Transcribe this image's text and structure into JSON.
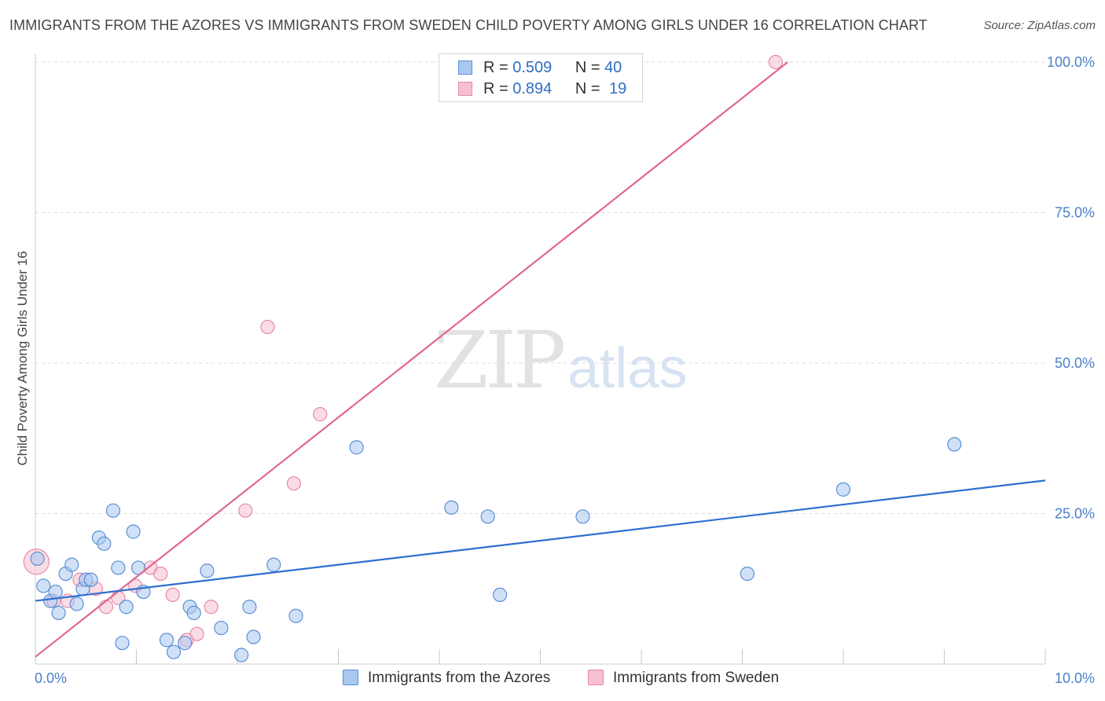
{
  "header": {
    "title": "IMMIGRANTS FROM THE AZORES VS IMMIGRANTS FROM SWEDEN CHILD POVERTY AMONG GIRLS UNDER 16 CORRELATION CHART",
    "source": "Source: ZipAtlas.com"
  },
  "watermark": {
    "zip": "ZIP",
    "atlas": "atlas"
  },
  "legend": {
    "r_label": "R =",
    "n_label": "N =",
    "rows": [
      {
        "r": "0.509",
        "n": "40"
      },
      {
        "r": "0.894",
        "n": "19"
      }
    ]
  },
  "colors": {
    "azores_fill": "#a9c8f0",
    "azores_stroke": "#5a8fd6",
    "azores_line": "#2e6fcf",
    "sweden_fill": "#f7bfd0",
    "sweden_stroke": "#e58aa8",
    "sweden_line": "#e06890",
    "grid": "#dcdcdc",
    "tick_text": "#4a7fc9"
  },
  "chart_data": {
    "type": "scatter",
    "title": "IMMIGRANTS FROM THE AZORES VS IMMIGRANTS FROM SWEDEN CHILD POVERTY AMONG GIRLS UNDER 16 CORRELATION CHART",
    "xlabel": "",
    "ylabel": "Child Poverty Among Girls Under 16",
    "xlim": [
      0,
      10
    ],
    "ylim": [
      0,
      100
    ],
    "x_tick_labels": [
      "0.0%",
      "10.0%"
    ],
    "y_ticks": [
      25,
      50,
      75,
      100
    ],
    "y_tick_labels": [
      "25.0%",
      "50.0%",
      "75.0%",
      "100.0%"
    ],
    "grid": true,
    "legend_position": "top-center",
    "series": [
      {
        "name": "Immigrants from the Azores",
        "r": 0.509,
        "n": 40,
        "trend": {
          "x": [
            0,
            10
          ],
          "y": [
            10.5,
            30.5
          ]
        },
        "points": [
          [
            0.02,
            17.5
          ],
          [
            0.08,
            13.0
          ],
          [
            0.15,
            10.5
          ],
          [
            0.2,
            12.0
          ],
          [
            0.23,
            8.5
          ],
          [
            0.3,
            15.0
          ],
          [
            0.36,
            16.5
          ],
          [
            0.41,
            10.0
          ],
          [
            0.47,
            12.5
          ],
          [
            0.5,
            14.0
          ],
          [
            0.55,
            14.0
          ],
          [
            0.63,
            21.0
          ],
          [
            0.68,
            20.0
          ],
          [
            0.77,
            25.5
          ],
          [
            0.82,
            16.0
          ],
          [
            0.86,
            3.5
          ],
          [
            0.9,
            9.5
          ],
          [
            0.97,
            22.0
          ],
          [
            1.02,
            16.0
          ],
          [
            1.07,
            12.0
          ],
          [
            1.3,
            4.0
          ],
          [
            1.37,
            2.0
          ],
          [
            1.48,
            3.5
          ],
          [
            1.53,
            9.5
          ],
          [
            1.57,
            8.5
          ],
          [
            1.7,
            15.5
          ],
          [
            1.84,
            6.0
          ],
          [
            2.04,
            1.5
          ],
          [
            2.12,
            9.5
          ],
          [
            2.16,
            4.5
          ],
          [
            2.36,
            16.5
          ],
          [
            2.58,
            8.0
          ],
          [
            3.18,
            36.0
          ],
          [
            4.12,
            26.0
          ],
          [
            4.48,
            24.5
          ],
          [
            4.6,
            11.5
          ],
          [
            5.42,
            24.5
          ],
          [
            7.05,
            15.0
          ],
          [
            8.0,
            29.0
          ],
          [
            9.1,
            36.5
          ]
        ]
      },
      {
        "name": "Immigrants from Sweden",
        "r": 0.894,
        "n": 19,
        "trend": {
          "x": [
            0,
            7.45
          ],
          "y": [
            1.2,
            100
          ]
        },
        "points": [
          [
            0.01,
            17.0
          ],
          [
            0.18,
            10.5
          ],
          [
            0.32,
            10.5
          ],
          [
            0.44,
            14.0
          ],
          [
            0.6,
            12.5
          ],
          [
            0.7,
            9.5
          ],
          [
            0.82,
            11.0
          ],
          [
            0.99,
            13.0
          ],
          [
            1.14,
            16.0
          ],
          [
            1.24,
            15.0
          ],
          [
            1.36,
            11.5
          ],
          [
            1.5,
            4.0
          ],
          [
            1.6,
            5.0
          ],
          [
            1.74,
            9.5
          ],
          [
            2.08,
            25.5
          ],
          [
            2.3,
            56.0
          ],
          [
            2.56,
            30.0
          ],
          [
            2.82,
            41.5
          ],
          [
            7.33,
            100.0
          ]
        ]
      }
    ]
  },
  "bottom_legend": {
    "items": [
      "Immigrants from the Azores",
      "Immigrants from Sweden"
    ]
  }
}
